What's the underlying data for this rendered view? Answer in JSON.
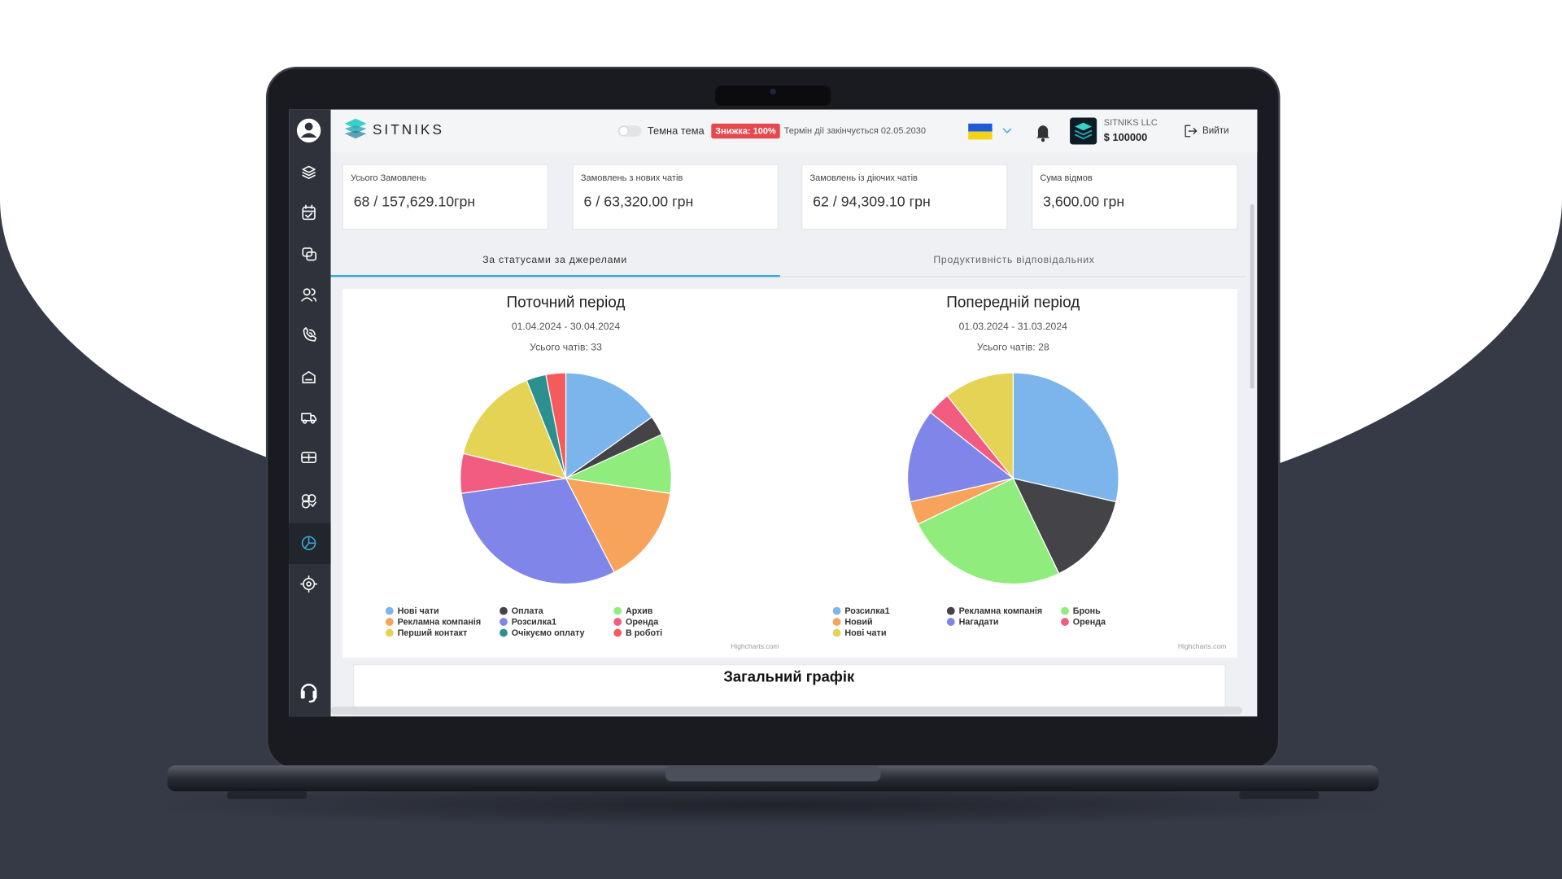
{
  "header": {
    "logo": "SITNIKS",
    "theme_toggle": "Темна тема",
    "discount_badge": "Знижка: 100%",
    "expiry": "Термін дії закінчується 02.05.2030",
    "company": "SITNIKS LLC",
    "balance": "$ 100000",
    "logout": "Вийти"
  },
  "stats": [
    {
      "label": "Усього Замовлень",
      "value": "68 / 157,629.10грн"
    },
    {
      "label": "Замовлень з нових чатів",
      "value": "6 / 63,320.00 грн"
    },
    {
      "label": "Замовлень із діючих чатів",
      "value": "62 / 94,309.10 грн"
    },
    {
      "label": "Сума відмов",
      "value": "3,600.00 грн"
    }
  ],
  "tabs": [
    "За статусами за джерелами",
    "Продуктивність відповідальних"
  ],
  "chart_data": [
    {
      "type": "pie",
      "title": "Поточний період",
      "subtitle": "01.04.2024 - 30.04.2024",
      "total": "Усього чатів: 33",
      "categories": [
        "Нові чати",
        "Оплата",
        "Архив",
        "Рекламна компанія",
        "Розсилка1",
        "Оренда",
        "Перший контакт",
        "Очікуємо оплату",
        "В роботі"
      ],
      "values": [
        5,
        1,
        3,
        5,
        10,
        2,
        5,
        1,
        1
      ],
      "colors": [
        "#7cb5ec",
        "#434348",
        "#90ed7d",
        "#f7a35c",
        "#8085e9",
        "#f15c80",
        "#e4d354",
        "#2b908f",
        "#f45b5b"
      ],
      "credit": "Highcharts.com"
    },
    {
      "type": "pie",
      "title": "Попередній період",
      "subtitle": "01.03.2024 - 31.03.2024",
      "total": "Усього чатів: 28",
      "categories": [
        "Розсилка1",
        "Рекламна компанія",
        "Бронь",
        "Новий",
        "Нагадати",
        "Оренда",
        "Нові чати"
      ],
      "values": [
        8,
        4,
        7,
        1,
        4,
        1,
        3
      ],
      "colors": [
        "#7cb5ec",
        "#434348",
        "#90ed7d",
        "#f7a35c",
        "#8085e9",
        "#f15c80",
        "#e4d354"
      ],
      "credit": "Highcharts.com"
    }
  ],
  "section_title": "Загальний графік"
}
